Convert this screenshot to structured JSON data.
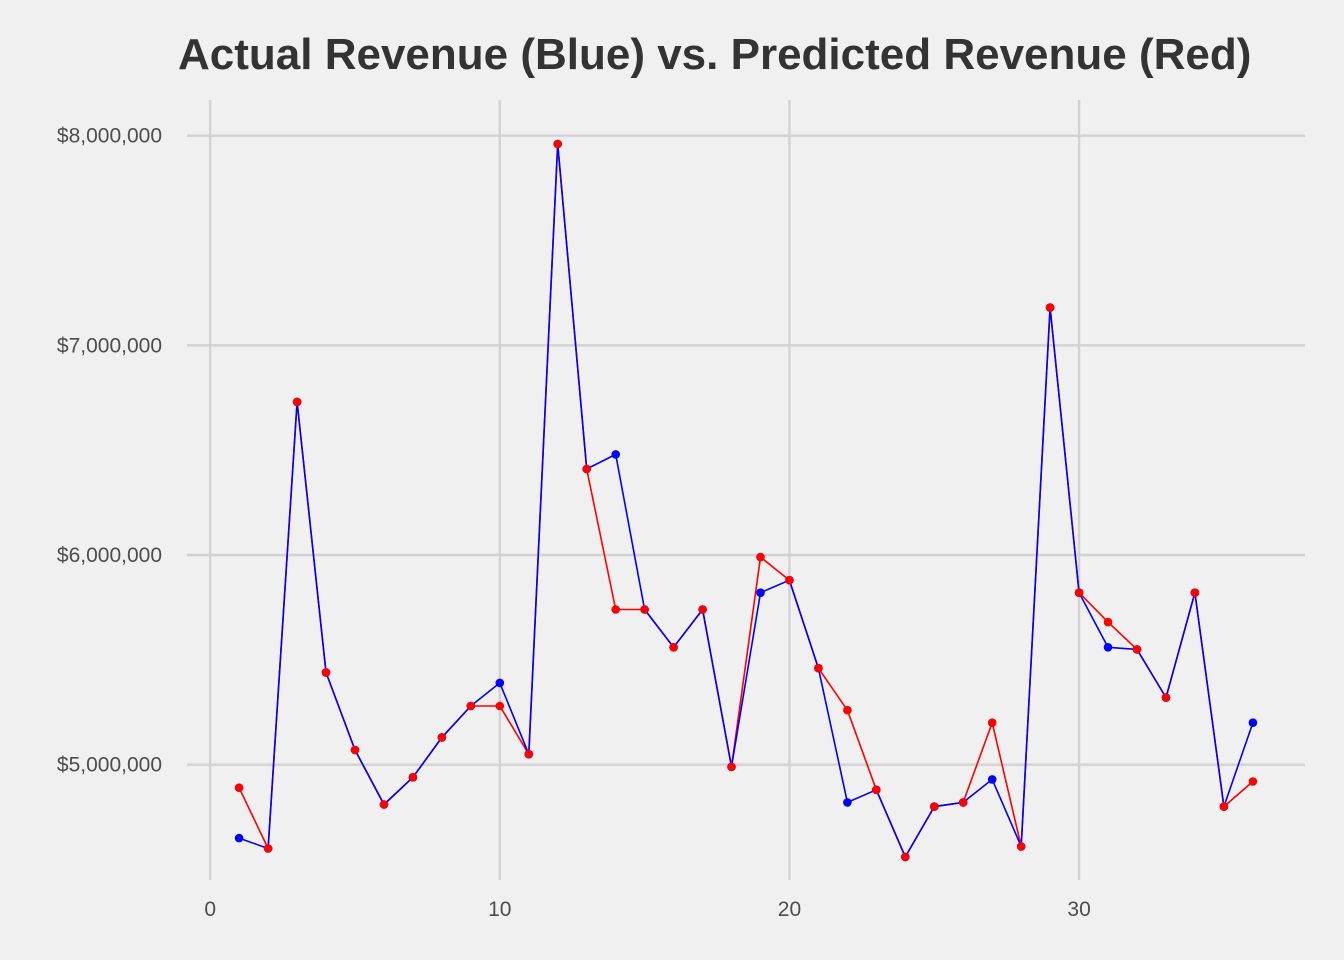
{
  "chart_data": {
    "type": "line",
    "title": "Actual Revenue (Blue) vs. Predicted Revenue (Red)",
    "xlabel": "",
    "ylabel": "",
    "xlim": [
      -0.8,
      37.8
    ],
    "ylim": [
      4450000,
      8170000
    ],
    "x_ticks": [
      0,
      10,
      20,
      30
    ],
    "x_tick_labels": [
      "0",
      "10",
      "20",
      "30"
    ],
    "y_ticks": [
      5000000,
      6000000,
      7000000,
      8000000
    ],
    "y_tick_labels": [
      "$5,000,000",
      "$6,000,000",
      "$7,000,000",
      "$8,000,000"
    ],
    "grid": true,
    "x": [
      1,
      2,
      3,
      4,
      5,
      6,
      7,
      8,
      9,
      10,
      11,
      12,
      13,
      14,
      15,
      16,
      17,
      18,
      19,
      20,
      21,
      22,
      23,
      24,
      25,
      26,
      27,
      28,
      29,
      30,
      31,
      32,
      33,
      34,
      35,
      36
    ],
    "series": [
      {
        "color": "#ff0000",
        "values": [
          4890000,
          4600000,
          6730000,
          5440000,
          5070000,
          4810000,
          4940000,
          5130000,
          5280000,
          5280000,
          5050000,
          7960000,
          6410000,
          5740000,
          5740000,
          5560000,
          5740000,
          4990000,
          5990000,
          5880000,
          5460000,
          5260000,
          4880000,
          4560000,
          4800000,
          4820000,
          5200000,
          4610000,
          7180000,
          5820000,
          5680000,
          5550000,
          5320000,
          5820000,
          4800000,
          4920000
        ]
      },
      {
        "color": "#0000ff",
        "values": [
          4650000,
          4600000,
          6730000,
          5440000,
          5070000,
          4810000,
          4940000,
          5130000,
          5280000,
          5390000,
          5050000,
          7960000,
          6410000,
          6480000,
          5740000,
          5560000,
          5740000,
          4990000,
          5820000,
          5880000,
          5460000,
          4820000,
          4880000,
          4560000,
          4800000,
          4820000,
          4930000,
          4610000,
          7180000,
          5820000,
          5560000,
          5550000,
          5320000,
          5820000,
          4800000,
          5200000
        ]
      }
    ]
  },
  "colors": {
    "background": "#f0f0f0",
    "grid": "#d2d2d2",
    "predicted": "#ff0000",
    "actual": "#0000ff"
  }
}
